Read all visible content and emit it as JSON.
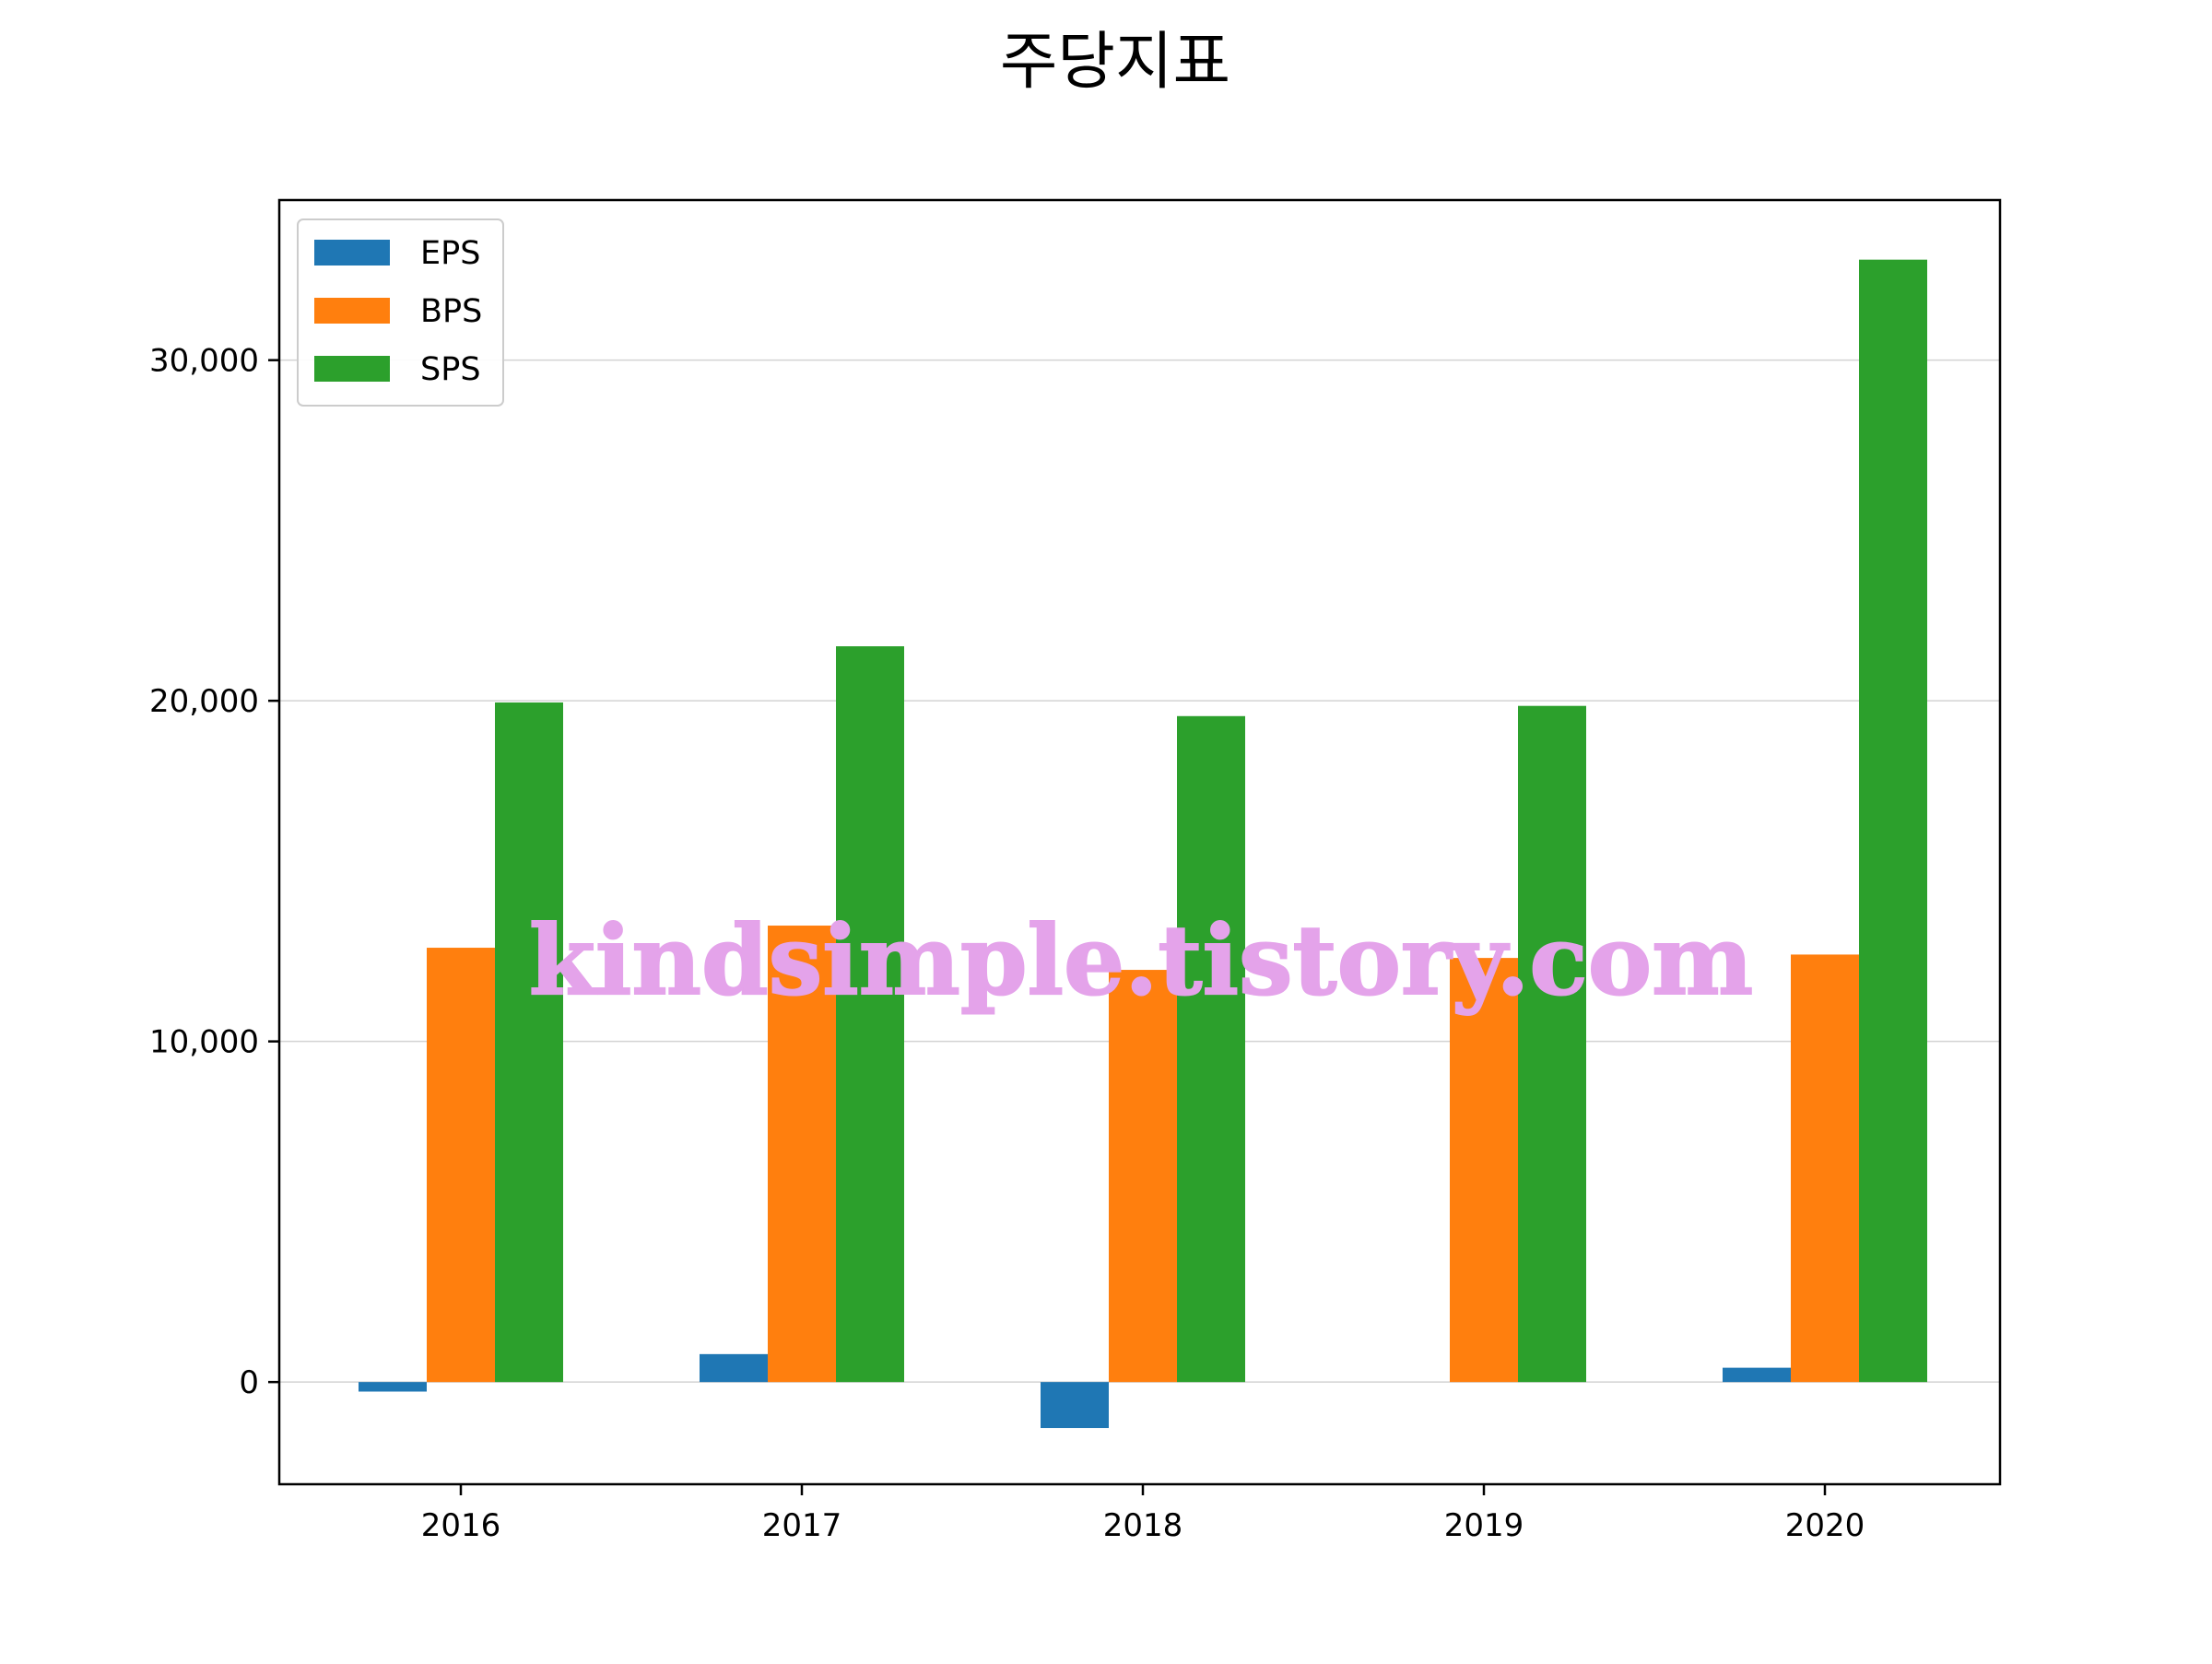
{
  "chart_data": {
    "type": "bar",
    "title": "주당지표",
    "xlabel": "",
    "ylabel": "",
    "categories": [
      "2016",
      "2017",
      "2018",
      "2019",
      "2020"
    ],
    "series": [
      {
        "name": "EPS",
        "color": "#1f77b4",
        "values": [
          -280,
          820,
          -1350,
          0,
          420
        ]
      },
      {
        "name": "BPS",
        "color": "#ff7f0e",
        "values": [
          12750,
          13400,
          12100,
          12450,
          12550
        ]
      },
      {
        "name": "SPS",
        "color": "#2ca02c",
        "values": [
          19950,
          21600,
          19550,
          19850,
          32950
        ]
      }
    ],
    "ylim": [
      -3000,
      34700
    ],
    "yticks": [
      0,
      10000,
      20000,
      30000
    ],
    "ytick_labels": [
      "0",
      "10,000",
      "20,000",
      "30,000"
    ],
    "grid": "horizontal",
    "legend": "top-left",
    "watermark": "kindsimple.tistory.com"
  }
}
